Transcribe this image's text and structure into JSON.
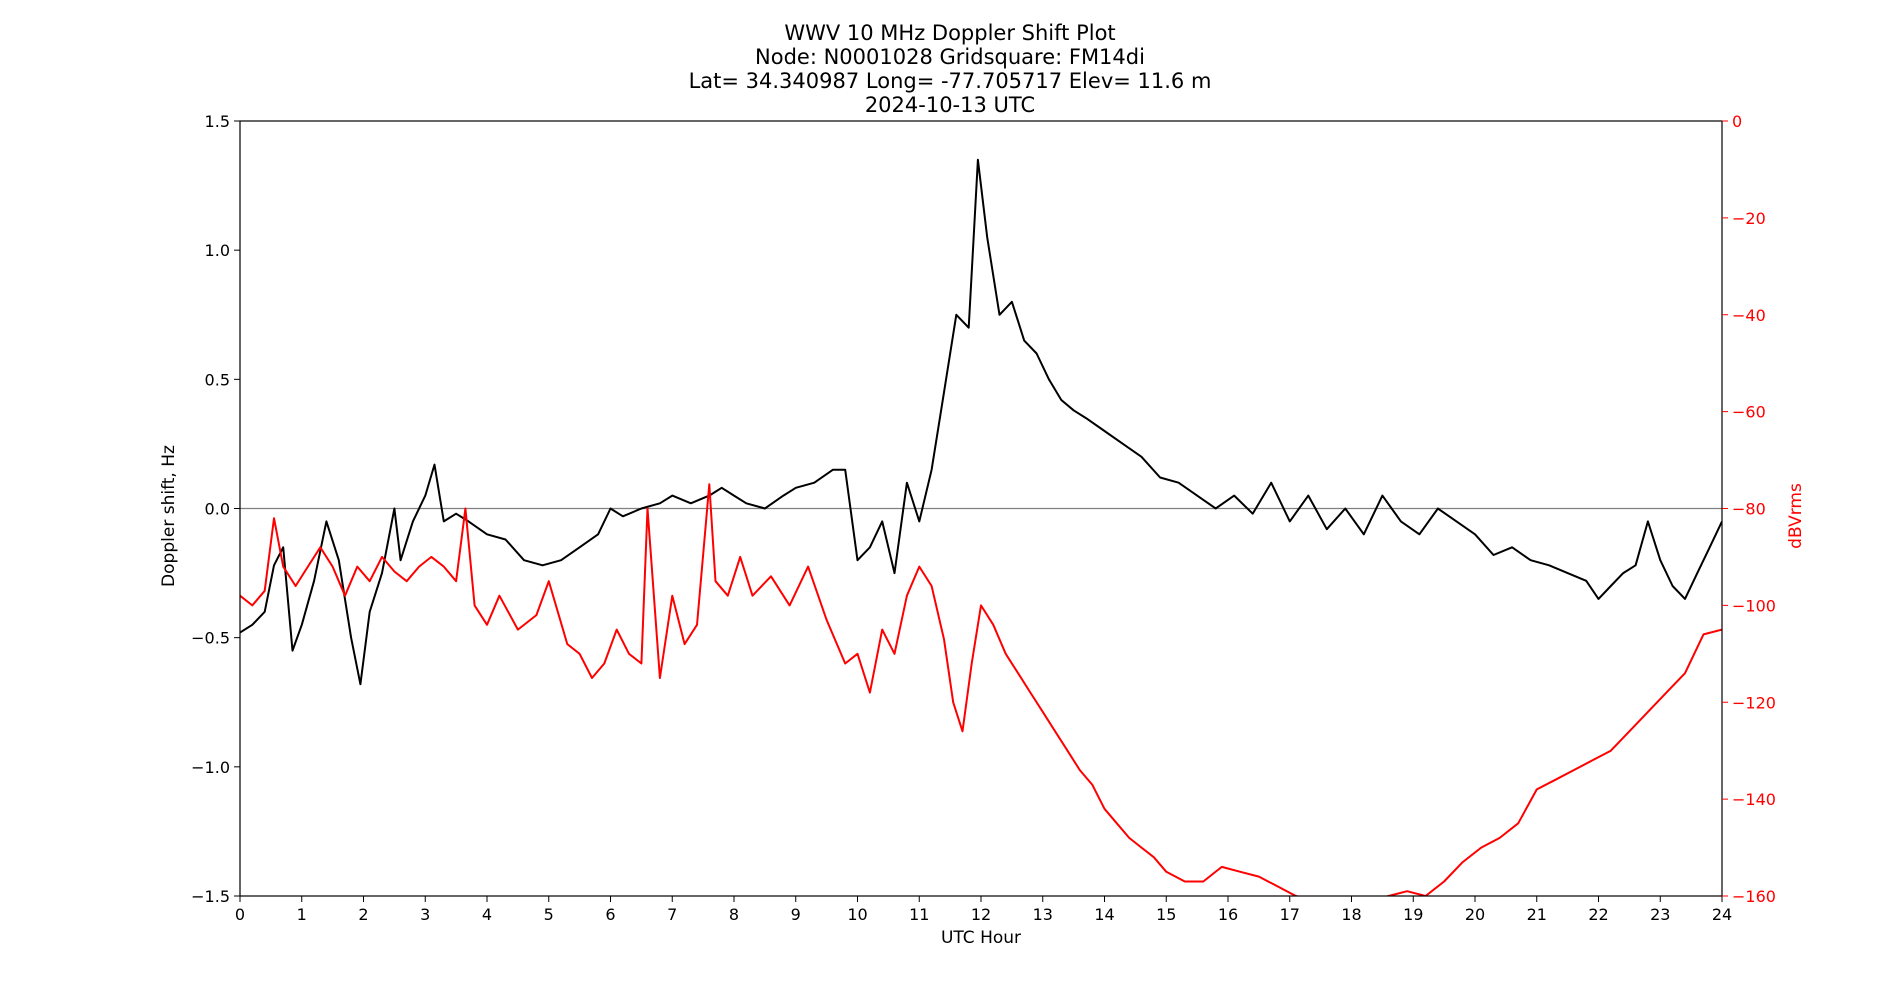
{
  "chart_data": {
    "type": "line",
    "title": [
      "WWV 10 MHz Doppler Shift Plot",
      "Node:  N0001028     Gridsquare:  FM14di",
      "Lat= 34.340987    Long= -77.705717    Elev= 11.6 m",
      "2024-10-13  UTC"
    ],
    "xlabel": "UTC Hour",
    "ylabel_left": "Doppler shift, Hz",
    "ylabel_right": "dBVrms",
    "xlim": [
      0,
      24
    ],
    "ylim_left": [
      -1.5,
      1.5
    ],
    "ylim_right": [
      -160,
      0
    ],
    "xticks": [
      "0",
      "1",
      "2",
      "3",
      "4",
      "5",
      "6",
      "7",
      "8",
      "9",
      "10",
      "11",
      "12",
      "13",
      "14",
      "15",
      "16",
      "17",
      "18",
      "19",
      "20",
      "21",
      "22",
      "23",
      "24"
    ],
    "yticks_left": [
      "1.5",
      "1.0",
      "0.5",
      "0.0",
      "−0.5",
      "−1.0",
      "−1.5"
    ],
    "yticks_right": [
      "0",
      "−20",
      "−40",
      "−60",
      "−80",
      "−100",
      "−120",
      "−140",
      "−160"
    ],
    "reference_line": 0.0,
    "colors": {
      "doppler": "#000000",
      "power": "#ff0000",
      "right_axis": "#ff0000",
      "zero_line": "#808080"
    },
    "series": [
      {
        "axis": "left",
        "color": "#000000",
        "x": [
          0,
          0.2,
          0.4,
          0.55,
          0.7,
          0.85,
          1.0,
          1.2,
          1.4,
          1.6,
          1.8,
          1.95,
          2.1,
          2.3,
          2.5,
          2.6,
          2.8,
          3.0,
          3.15,
          3.3,
          3.5,
          3.7,
          4.0,
          4.3,
          4.6,
          4.9,
          5.2,
          5.5,
          5.8,
          6.0,
          6.2,
          6.5,
          6.8,
          7.0,
          7.3,
          7.6,
          7.8,
          8.0,
          8.2,
          8.5,
          8.8,
          9.0,
          9.3,
          9.6,
          9.8,
          10.0,
          10.2,
          10.4,
          10.6,
          10.8,
          11.0,
          11.2,
          11.4,
          11.6,
          11.8,
          11.95,
          12.1,
          12.3,
          12.5,
          12.7,
          12.9,
          13.1,
          13.3,
          13.5,
          13.7,
          14.0,
          14.3,
          14.6,
          14.9,
          15.2,
          15.5,
          15.8,
          16.1,
          16.4,
          16.7,
          17.0,
          17.3,
          17.6,
          17.9,
          18.2,
          18.5,
          18.8,
          19.1,
          19.4,
          19.7,
          20.0,
          20.3,
          20.6,
          20.9,
          21.2,
          21.5,
          21.8,
          22.0,
          22.2,
          22.4,
          22.6,
          22.8,
          23.0,
          23.2,
          23.4,
          23.6,
          23.8,
          24.0
        ],
        "y": [
          -0.48,
          -0.45,
          -0.4,
          -0.22,
          -0.15,
          -0.55,
          -0.45,
          -0.28,
          -0.05,
          -0.2,
          -0.5,
          -0.68,
          -0.4,
          -0.25,
          0.0,
          -0.2,
          -0.05,
          0.05,
          0.17,
          -0.05,
          -0.02,
          -0.05,
          -0.1,
          -0.12,
          -0.2,
          -0.22,
          -0.2,
          -0.15,
          -0.1,
          0.0,
          -0.03,
          0.0,
          0.02,
          0.05,
          0.02,
          0.05,
          0.08,
          0.05,
          0.02,
          0.0,
          0.05,
          0.08,
          0.1,
          0.15,
          0.15,
          -0.2,
          -0.15,
          -0.05,
          -0.25,
          0.1,
          -0.05,
          0.15,
          0.45,
          0.75,
          0.7,
          1.35,
          1.05,
          0.75,
          0.8,
          0.65,
          0.6,
          0.5,
          0.42,
          0.38,
          0.35,
          0.3,
          0.25,
          0.2,
          0.12,
          0.1,
          0.05,
          0.0,
          0.05,
          -0.02,
          0.1,
          -0.05,
          0.05,
          -0.08,
          0.0,
          -0.1,
          0.05,
          -0.05,
          -0.1,
          0.0,
          -0.05,
          -0.1,
          -0.18,
          -0.15,
          -0.2,
          -0.22,
          -0.25,
          -0.28,
          -0.35,
          -0.3,
          -0.25,
          -0.22,
          -0.05,
          -0.2,
          -0.3,
          -0.35,
          -0.25,
          -0.15,
          -0.05
        ]
      },
      {
        "axis": "right",
        "color": "#ff0000",
        "x": [
          0,
          0.2,
          0.4,
          0.55,
          0.7,
          0.9,
          1.1,
          1.3,
          1.5,
          1.7,
          1.9,
          2.1,
          2.3,
          2.5,
          2.7,
          2.9,
          3.1,
          3.3,
          3.5,
          3.65,
          3.8,
          4.0,
          4.2,
          4.5,
          4.8,
          5.0,
          5.3,
          5.5,
          5.7,
          5.9,
          6.1,
          6.3,
          6.5,
          6.6,
          6.8,
          7.0,
          7.2,
          7.4,
          7.6,
          7.7,
          7.9,
          8.1,
          8.3,
          8.6,
          8.9,
          9.2,
          9.5,
          9.8,
          10.0,
          10.2,
          10.4,
          10.6,
          10.8,
          11.0,
          11.2,
          11.4,
          11.55,
          11.7,
          11.85,
          12.0,
          12.2,
          12.4,
          12.6,
          12.8,
          13.0,
          13.2,
          13.4,
          13.6,
          13.8,
          14.0,
          14.2,
          14.4,
          14.6,
          14.8,
          15.0,
          15.3,
          15.6,
          15.9,
          16.2,
          16.5,
          16.8,
          17.1,
          17.4,
          17.7,
          18.0,
          18.3,
          18.6,
          18.9,
          19.2,
          19.5,
          19.8,
          20.1,
          20.4,
          20.7,
          21.0,
          21.3,
          21.6,
          21.9,
          22.2,
          22.5,
          22.8,
          23.1,
          23.4,
          23.7,
          24.0
        ],
        "y": [
          -98,
          -100,
          -97,
          -82,
          -92,
          -96,
          -92,
          -88,
          -92,
          -98,
          -92,
          -95,
          -90,
          -93,
          -95,
          -92,
          -90,
          -92,
          -95,
          -80,
          -100,
          -104,
          -98,
          -105,
          -102,
          -95,
          -108,
          -110,
          -115,
          -112,
          -105,
          -110,
          -112,
          -80,
          -115,
          -98,
          -108,
          -104,
          -75,
          -95,
          -98,
          -90,
          -98,
          -94,
          -100,
          -92,
          -103,
          -112,
          -110,
          -118,
          -105,
          -110,
          -98,
          -92,
          -96,
          -107,
          -120,
          -126,
          -112,
          -100,
          -104,
          -110,
          -114,
          -118,
          -122,
          -126,
          -130,
          -134,
          -137,
          -142,
          -145,
          -148,
          -150,
          -152,
          -155,
          -157,
          -157,
          -154,
          -155,
          -156,
          -158,
          -160,
          -161,
          -161,
          -162,
          -161,
          -160,
          -159,
          -160,
          -157,
          -153,
          -150,
          -148,
          -145,
          -138,
          -136,
          -134,
          -132,
          -130,
          -126,
          -122,
          -118,
          -114,
          -106,
          -105
        ]
      }
    ]
  }
}
